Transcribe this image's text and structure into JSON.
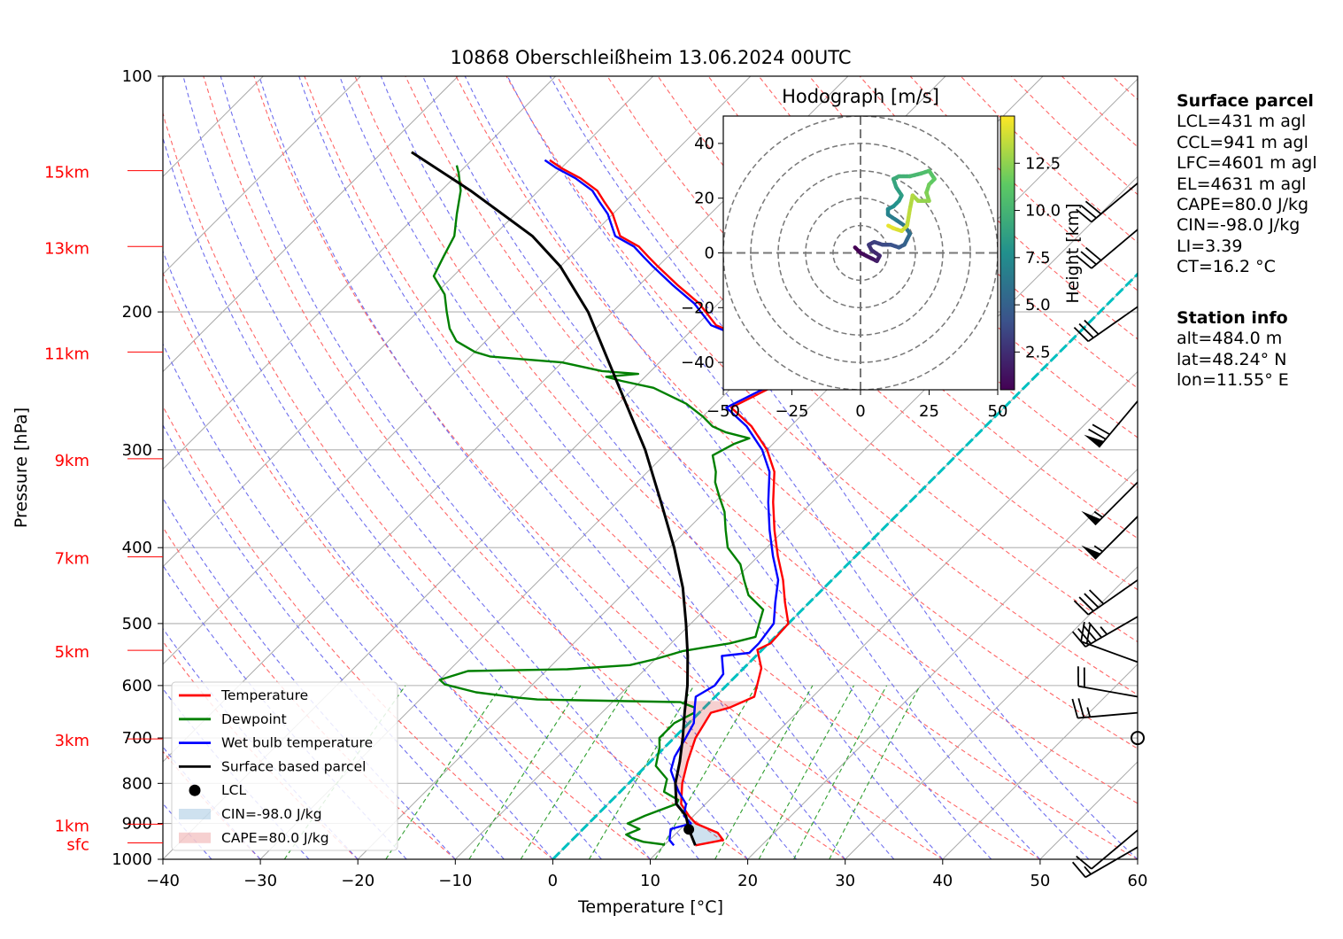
{
  "title": "10868 Oberschleißheim 13.06.2024 00UTC",
  "chart_data": [
    {
      "type": "line",
      "subtype": "skew-T log-p diagram",
      "xlabel": "Temperature [°C]",
      "ylabel": "Pressure [hPa]",
      "xlim": [
        -40,
        60
      ],
      "ylim": [
        1000,
        100
      ],
      "y_scale": "log",
      "grid": true,
      "x_ticks": [
        "−40",
        "−30",
        "−20",
        "−10",
        "0",
        "10",
        "20",
        "30",
        "40",
        "50",
        "60"
      ],
      "y_ticks": [
        "100",
        "200",
        "300",
        "400",
        "500",
        "600",
        "700",
        "800",
        "900",
        "1000"
      ],
      "height_labels": [
        {
          "label": "15km",
          "p": 132
        },
        {
          "label": "13km",
          "p": 165
        },
        {
          "label": "11km",
          "p": 225
        },
        {
          "label": "9km",
          "p": 308
        },
        {
          "label": "7km",
          "p": 411
        },
        {
          "label": "5km",
          "p": 541
        },
        {
          "label": "3km",
          "p": 702
        },
        {
          "label": "1km",
          "p": 902
        },
        {
          "label": "sfc",
          "p": 953
        }
      ],
      "series": [
        {
          "name": "Temperature",
          "color": "#ff0000",
          "points": [
            [
              13.2,
              960
            ],
            [
              15.5,
              945
            ],
            [
              14.2,
              925
            ],
            [
              11,
              900
            ],
            [
              9.5,
              880
            ],
            [
              7.5,
              850
            ],
            [
              5.5,
              800
            ],
            [
              3.8,
              750
            ],
            [
              2.2,
              700
            ],
            [
              1.2,
              650
            ],
            [
              2.6,
              640
            ],
            [
              4,
              620
            ],
            [
              1.8,
              570
            ],
            [
              -0.5,
              540
            ],
            [
              0.2,
              530
            ],
            [
              0,
              500
            ],
            [
              -2.5,
              470
            ],
            [
              -5,
              440
            ],
            [
              -8,
              410
            ],
            [
              -11,
              380
            ],
            [
              -14,
              350
            ],
            [
              -17,
              320
            ],
            [
              -20,
              300
            ],
            [
              -24,
              280
            ],
            [
              -28,
              265
            ],
            [
              -26,
              250
            ],
            [
              -26,
              235
            ],
            [
              -29.5,
              228
            ],
            [
              -31,
              222
            ],
            [
              -34,
              215
            ],
            [
              -38,
              208
            ],
            [
              -42,
              195
            ],
            [
              -46,
              185
            ],
            [
              -50,
              175
            ],
            [
              -52,
              170
            ],
            [
              -54,
              165
            ],
            [
              -57,
              160
            ],
            [
              -60,
              150
            ],
            [
              -62,
              145
            ],
            [
              -64,
              140
            ],
            [
              -67,
              135
            ],
            [
              -70,
              131
            ],
            [
              -72,
              128
            ]
          ]
        },
        {
          "name": "Dewpoint",
          "color": "#008000",
          "points": [
            [
              10,
              958
            ],
            [
              7.5,
              950
            ],
            [
              6,
              940
            ],
            [
              5,
              930
            ],
            [
              5.8,
              915
            ],
            [
              4,
              900
            ],
            [
              5,
              880
            ],
            [
              7,
              850
            ],
            [
              6.8,
              840
            ],
            [
              4.5,
              820
            ],
            [
              3.5,
              790
            ],
            [
              1,
              760
            ],
            [
              -0.5,
              720
            ],
            [
              -1.5,
              700
            ],
            [
              -1.5,
              670
            ],
            [
              -0.5,
              650
            ],
            [
              -1,
              640
            ],
            [
              -3,
              630
            ],
            [
              -18,
              625
            ],
            [
              -20,
              622
            ],
            [
              -25,
              612
            ],
            [
              -29,
              598
            ],
            [
              -30,
              590
            ],
            [
              -28,
              575
            ],
            [
              -18,
              572
            ],
            [
              -12,
              565
            ],
            [
              -10,
              555
            ],
            [
              -8,
              542
            ],
            [
              -6,
              536
            ],
            [
              -4,
              530
            ],
            [
              -2,
              520
            ],
            [
              -3,
              500
            ],
            [
              -4,
              480
            ],
            [
              -7,
              460
            ],
            [
              -9,
              440
            ],
            [
              -11,
              420
            ],
            [
              -14,
              400
            ],
            [
              -16,
              380
            ],
            [
              -18,
              360
            ],
            [
              -20,
              345
            ],
            [
              -22,
              330
            ],
            [
              -23,
              320
            ],
            [
              -25,
              305
            ],
            [
              -24,
              295
            ],
            [
              -23,
              290
            ],
            [
              -26,
              285
            ],
            [
              -28,
              280
            ],
            [
              -30,
              272
            ],
            [
              -33,
              262
            ],
            [
              -38,
              250
            ],
            [
              -42,
              245
            ],
            [
              -44,
              242
            ],
            [
              -41,
              240
            ],
            [
              -45,
              238
            ],
            [
              -50,
              232
            ],
            [
              -54,
              230
            ],
            [
              -58,
              228
            ],
            [
              -60,
              225
            ],
            [
              -63,
              218
            ],
            [
              -65,
              210
            ],
            [
              -67,
              200
            ],
            [
              -69,
              190
            ],
            [
              -72,
              180
            ],
            [
              -73,
              170
            ],
            [
              -74,
              160
            ],
            [
              -76,
              150
            ],
            [
              -78,
              140
            ],
            [
              -80,
              133
            ],
            [
              -81,
              130
            ]
          ]
        },
        {
          "name": "Wet bulb temperature",
          "color": "#0000ff",
          "points": [
            [
              11,
              960
            ],
            [
              10,
              945
            ],
            [
              9.5,
              930
            ],
            [
              9,
              915
            ],
            [
              10.5,
              900
            ],
            [
              9,
              880
            ],
            [
              8,
              850
            ],
            [
              6,
              820
            ],
            [
              4.8,
              800
            ],
            [
              3,
              770
            ],
            [
              2,
              740
            ],
            [
              1.2,
              700
            ],
            [
              0.5,
              670
            ],
            [
              -1,
              640
            ],
            [
              -2,
              620
            ],
            [
              -1.2,
              600
            ],
            [
              -1.5,
              580
            ],
            [
              -3.5,
              550
            ],
            [
              -1,
              545
            ],
            [
              -1,
              530
            ],
            [
              -1.5,
              500
            ],
            [
              -3.5,
              470
            ],
            [
              -5.5,
              440
            ],
            [
              -8.5,
              410
            ],
            [
              -11.5,
              380
            ],
            [
              -14.5,
              350
            ],
            [
              -17.5,
              320
            ],
            [
              -20.5,
              300
            ],
            [
              -24.5,
              280
            ],
            [
              -28.5,
              265
            ],
            [
              -26.5,
              250
            ],
            [
              -26.5,
              235
            ],
            [
              -30,
              228
            ],
            [
              -31.5,
              222
            ],
            [
              -34.5,
              215
            ],
            [
              -38.5,
              208
            ],
            [
              -42.5,
              195
            ],
            [
              -46.5,
              185
            ],
            [
              -50.5,
              175
            ],
            [
              -52.5,
              170
            ],
            [
              -54.5,
              165
            ],
            [
              -57.5,
              160
            ],
            [
              -60.5,
              150
            ],
            [
              -62.5,
              145
            ],
            [
              -64.5,
              140
            ],
            [
              -67.5,
              135
            ],
            [
              -70.5,
              131
            ],
            [
              -72.5,
              128
            ]
          ]
        },
        {
          "name": "Surface based parcel",
          "color": "#000000",
          "points": [
            [
              13.2,
              960
            ],
            [
              10.9,
              916
            ],
            [
              9.2,
              880
            ],
            [
              7,
              850
            ],
            [
              4.8,
              800
            ],
            [
              3,
              750
            ],
            [
              0.9,
              700
            ],
            [
              -1.5,
              650
            ],
            [
              -4,
              600
            ],
            [
              -7,
              550
            ],
            [
              -10.5,
              500
            ],
            [
              -14.5,
              450
            ],
            [
              -19.5,
              400
            ],
            [
              -25.5,
              350
            ],
            [
              -32.5,
              300
            ],
            [
              -41.5,
              250
            ],
            [
              -52.5,
              200
            ],
            [
              -60,
              175
            ],
            [
              -66,
              160
            ],
            [
              -77,
              140
            ],
            [
              -87,
              125
            ]
          ]
        }
      ],
      "lcl": {
        "name": "LCL",
        "t": 10.9,
        "p": 916
      },
      "cin": {
        "name": "CIN=-98.0 J/kg",
        "color": "#1f77b4"
      },
      "cape": {
        "name": "CAPE=80.0 J/kg",
        "color": "#d62728"
      },
      "legend_position": "bottom-left",
      "wind_barbs": [
        {
          "p": 965,
          "speed_kt": 15,
          "dir_deg": 240
        },
        {
          "p": 918,
          "speed_kt": 10,
          "dir_deg": 230
        },
        {
          "p": 700,
          "speed_kt": 0,
          "dir_deg": 0
        },
        {
          "p": 650,
          "speed_kt": 25,
          "dir_deg": 265
        },
        {
          "p": 620,
          "speed_kt": 20,
          "dir_deg": 280
        },
        {
          "p": 560,
          "speed_kt": 20,
          "dir_deg": 290
        },
        {
          "p": 490,
          "speed_kt": 45,
          "dir_deg": 240
        },
        {
          "p": 440,
          "speed_kt": 40,
          "dir_deg": 235
        },
        {
          "p": 365,
          "speed_kt": 55,
          "dir_deg": 225
        },
        {
          "p": 330,
          "speed_kt": 55,
          "dir_deg": 225
        },
        {
          "p": 260,
          "speed_kt": 70,
          "dir_deg": 220
        },
        {
          "p": 197,
          "speed_kt": 30,
          "dir_deg": 235
        },
        {
          "p": 157,
          "speed_kt": 30,
          "dir_deg": 230
        },
        {
          "p": 137,
          "speed_kt": 30,
          "dir_deg": 230
        }
      ]
    },
    {
      "type": "scatter",
      "title": "Hodograph [m/s]",
      "xlim": [
        -50,
        50
      ],
      "ylim": [
        -50,
        50
      ],
      "x_ticks": [
        "−50",
        "−25",
        "0",
        "25",
        "50"
      ],
      "y_ticks": [
        "40",
        "20",
        "0",
        "−20",
        "−40"
      ],
      "rings": [
        10,
        20,
        30,
        40,
        50
      ],
      "colorbar": {
        "label": "Height [km]",
        "ticks": [
          "2.5",
          "5.0",
          "7.5",
          "10.0",
          "12.5"
        ],
        "range": [
          0.5,
          15
        ]
      },
      "points": [
        {
          "u": -2,
          "v": 2,
          "h": 0.5
        },
        {
          "u": 0,
          "v": 0,
          "h": 0.8
        },
        {
          "u": 2,
          "v": -1,
          "h": 1.1
        },
        {
          "u": 4,
          "v": -2,
          "h": 1.4
        },
        {
          "u": 6,
          "v": -3,
          "h": 1.8
        },
        {
          "u": 7,
          "v": -1,
          "h": 2.2
        },
        {
          "u": 4,
          "v": 1,
          "h": 2.6
        },
        {
          "u": 3,
          "v": 3,
          "h": 3.0
        },
        {
          "u": 5,
          "v": 4,
          "h": 3.4
        },
        {
          "u": 8,
          "v": 3,
          "h": 3.8
        },
        {
          "u": 11,
          "v": 3,
          "h": 4.2
        },
        {
          "u": 14,
          "v": 2,
          "h": 4.6
        },
        {
          "u": 16,
          "v": 3,
          "h": 5.0
        },
        {
          "u": 17,
          "v": 5,
          "h": 5.4
        },
        {
          "u": 18,
          "v": 7,
          "h": 5.8
        },
        {
          "u": 16,
          "v": 10,
          "h": 6.2
        },
        {
          "u": 13,
          "v": 12,
          "h": 6.6
        },
        {
          "u": 10,
          "v": 14,
          "h": 7.0
        },
        {
          "u": 10,
          "v": 16,
          "h": 7.4
        },
        {
          "u": 12,
          "v": 17,
          "h": 7.8
        },
        {
          "u": 14,
          "v": 19,
          "h": 8.2
        },
        {
          "u": 15,
          "v": 21,
          "h": 8.6
        },
        {
          "u": 13,
          "v": 24,
          "h": 9.0
        },
        {
          "u": 12,
          "v": 27,
          "h": 9.4
        },
        {
          "u": 14,
          "v": 28,
          "h": 9.8
        },
        {
          "u": 18,
          "v": 28,
          "h": 10.2
        },
        {
          "u": 22,
          "v": 29,
          "h": 10.6
        },
        {
          "u": 25,
          "v": 30,
          "h": 11.0
        },
        {
          "u": 27,
          "v": 27,
          "h": 11.4
        },
        {
          "u": 25,
          "v": 25,
          "h": 11.8
        },
        {
          "u": 24,
          "v": 22,
          "h": 12.2
        },
        {
          "u": 25,
          "v": 19,
          "h": 12.6
        },
        {
          "u": 21,
          "v": 19,
          "h": 13.0
        },
        {
          "u": 19,
          "v": 21,
          "h": 13.3
        },
        {
          "u": 18,
          "v": 16,
          "h": 13.6
        },
        {
          "u": 17,
          "v": 10,
          "h": 13.9
        },
        {
          "u": 15,
          "v": 8,
          "h": 14.2
        },
        {
          "u": 12,
          "v": 9,
          "h": 14.5
        },
        {
          "u": 10,
          "v": 10,
          "h": 14.8
        }
      ]
    }
  ],
  "surface_parcel": {
    "header": "Surface parcel",
    "lines": [
      "LCL=431 m agl",
      "CCL=941 m agl",
      "LFC=4601 m agl",
      "EL=4631 m agl",
      "CAPE=80.0 J/kg",
      "CIN=-98.0 J/kg",
      "LI=3.39",
      "CT=16.2 °C"
    ]
  },
  "station_info": {
    "header": "Station info",
    "lines": [
      "alt=484.0 m",
      "lat=48.24° N",
      "lon=11.55° E"
    ]
  }
}
